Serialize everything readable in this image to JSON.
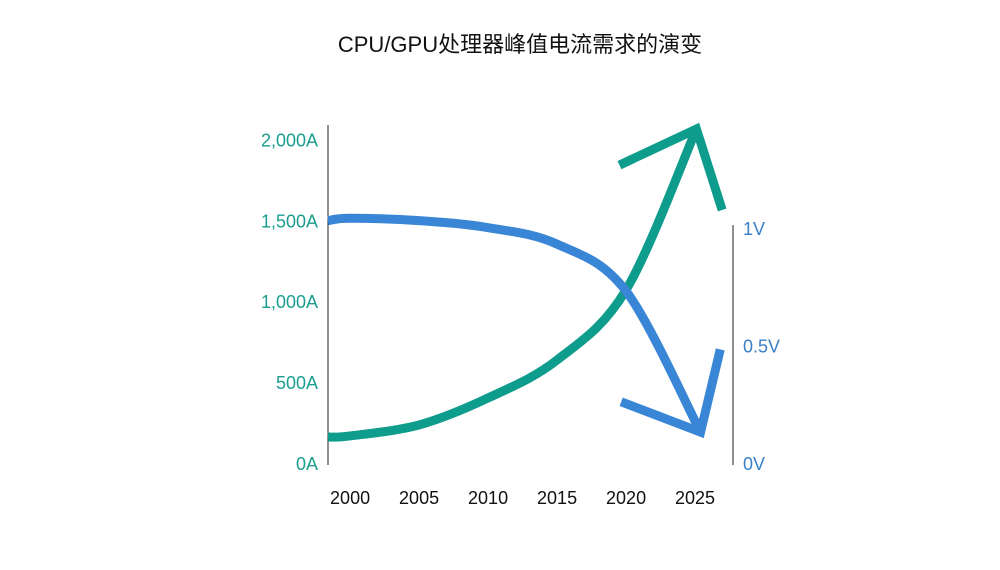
{
  "chart_data": {
    "type": "line",
    "title": "CPU/GPU处理器峰值电流需求的演变",
    "xlim": [
      1998.4,
      2027.75
    ],
    "xticks": [
      2000,
      2005,
      2010,
      2015,
      2020,
      2025
    ],
    "ylim": [
      0,
      2105
    ],
    "yticks": [
      {
        "value": 0,
        "label": "0A"
      },
      {
        "value": 500,
        "label": "500A"
      },
      {
        "value": 1000,
        "label": "1,000A"
      },
      {
        "value": 1500,
        "label": "1,500A"
      },
      {
        "value": 2000,
        "label": "2,000A"
      }
    ],
    "y2lim": [
      0,
      1.447
    ],
    "y2ticks": [
      {
        "value": 0,
        "label": "0V"
      },
      {
        "value": 0.5,
        "label": "0.5V"
      },
      {
        "value": 1,
        "label": "1V"
      }
    ],
    "y_color": "#1a9e8f",
    "y2_color": "#3a7fc8",
    "series": [
      {
        "color": "#0e9c8c",
        "x": [
          1998.4,
          2000,
          2005,
          2010,
          2015,
          2020,
          2025.1
        ],
        "values": [
          173,
          180,
          248,
          415,
          650,
          1084,
          2080
        ]
      },
      {
        "color": "#3a86d6",
        "axis": "y2",
        "x": [
          1998.4,
          2000,
          2005,
          2010,
          2015,
          2020,
          2025.4
        ],
        "values": [
          1.04,
          1.05,
          1.04,
          1.01,
          0.94,
          0.74,
          0.14
        ]
      }
    ]
  }
}
